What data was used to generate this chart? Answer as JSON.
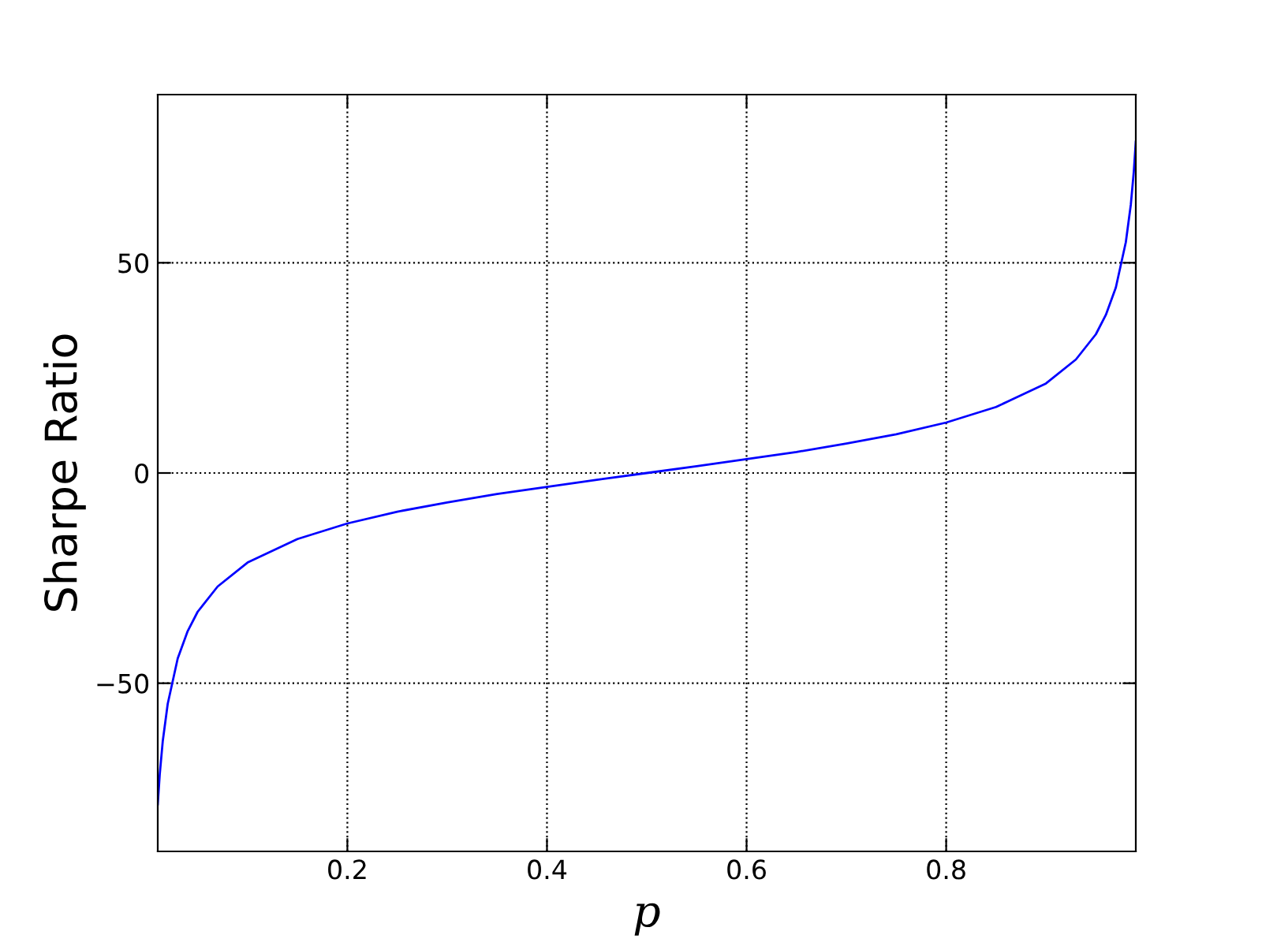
{
  "chart_data": {
    "type": "line",
    "xlabel": "p",
    "ylabel": "Sharpe Ratio",
    "series": [
      {
        "color": "#0000ff",
        "x": [
          0.01,
          0.012,
          0.015,
          0.02,
          0.03,
          0.04,
          0.05,
          0.07,
          0.1,
          0.15,
          0.2,
          0.25,
          0.3,
          0.35,
          0.4,
          0.45,
          0.5,
          0.55,
          0.6,
          0.65,
          0.7,
          0.75,
          0.8,
          0.85,
          0.9,
          0.93,
          0.95,
          0.96,
          0.97,
          0.98,
          0.985,
          0.988,
          0.99
        ],
        "values": [
          -78.8,
          -71.7,
          -63.8,
          -54.9,
          -44.1,
          -37.6,
          -33.0,
          -27.0,
          -21.3,
          -15.7,
          -12.0,
          -9.2,
          -7.0,
          -5.0,
          -3.3,
          -1.6,
          0.0,
          1.6,
          3.3,
          5.0,
          7.0,
          9.2,
          12.0,
          15.7,
          21.3,
          27.0,
          33.0,
          37.6,
          44.1,
          54.9,
          63.8,
          71.7,
          78.8
        ]
      }
    ],
    "xlim": [
      0.01,
      0.99
    ],
    "ylim": [
      -90,
      90
    ],
    "xticks": [
      0.2,
      0.4,
      0.6,
      0.8
    ],
    "yticks": [
      {
        "value": -50,
        "label": "−50"
      },
      0,
      50
    ],
    "grid": true,
    "line_style": "solid"
  }
}
